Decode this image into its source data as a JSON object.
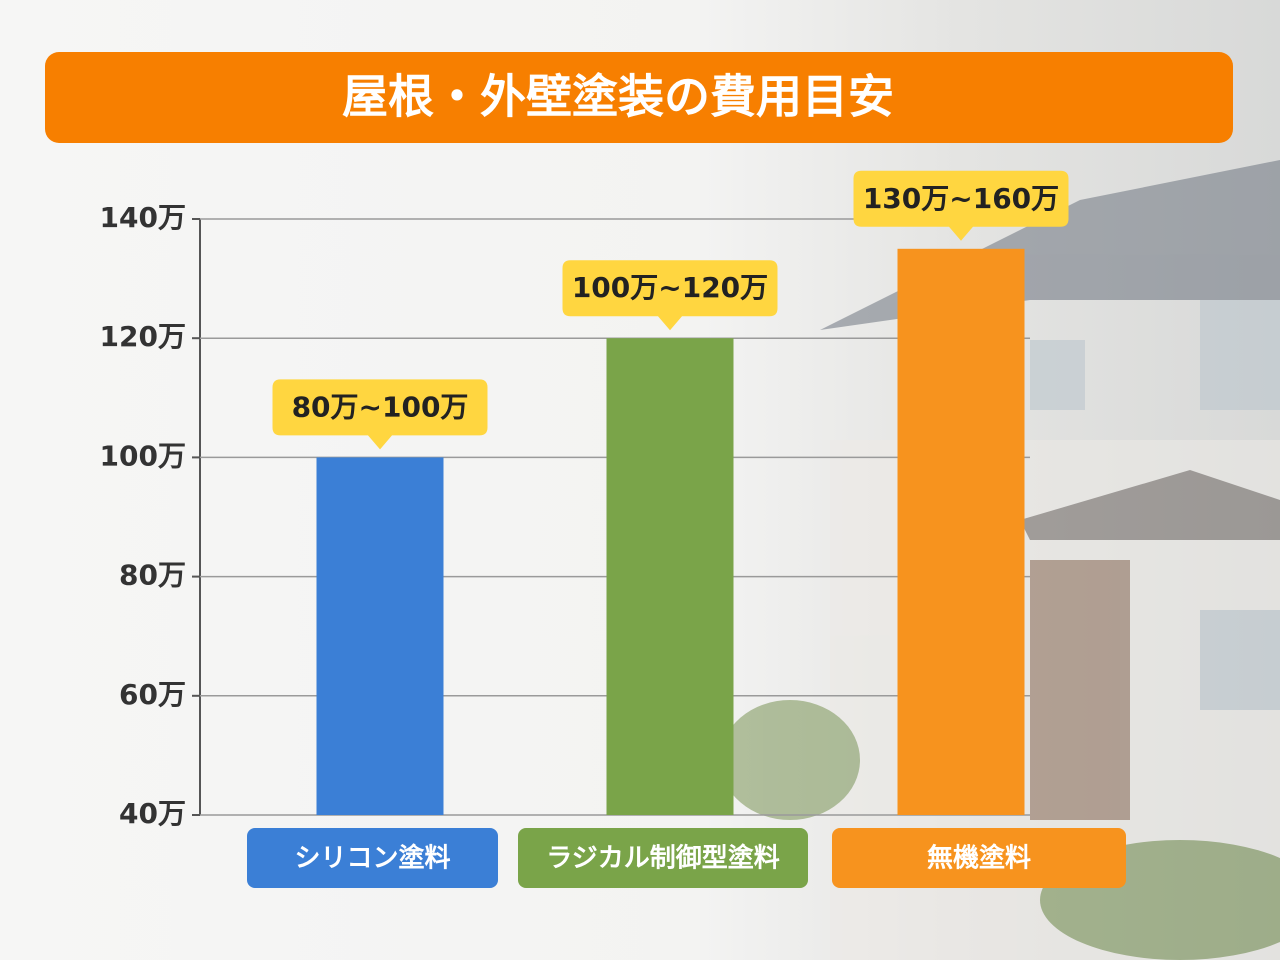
{
  "chart_data": {
    "type": "bar",
    "title": "屋根・外壁塗装の費用目安",
    "categories": [
      "シリコン塗料",
      "ラジカル制御型塗料",
      "無機塗料"
    ],
    "values": [
      100,
      120,
      135
    ],
    "value_labels": [
      "80万~100万",
      "100万~120万",
      "130万~160万"
    ],
    "colors": [
      "#3b7fd6",
      "#7aa449",
      "#f7931e"
    ],
    "ylim": [
      40,
      140
    ],
    "yticks": [
      {
        "value": 40,
        "label": "40万"
      },
      {
        "value": 60,
        "label": "60万"
      },
      {
        "value": 80,
        "label": "80万"
      },
      {
        "value": 100,
        "label": "100万"
      },
      {
        "value": 120,
        "label": "120万"
      },
      {
        "value": 140,
        "label": "140万"
      }
    ],
    "grid": true
  }
}
